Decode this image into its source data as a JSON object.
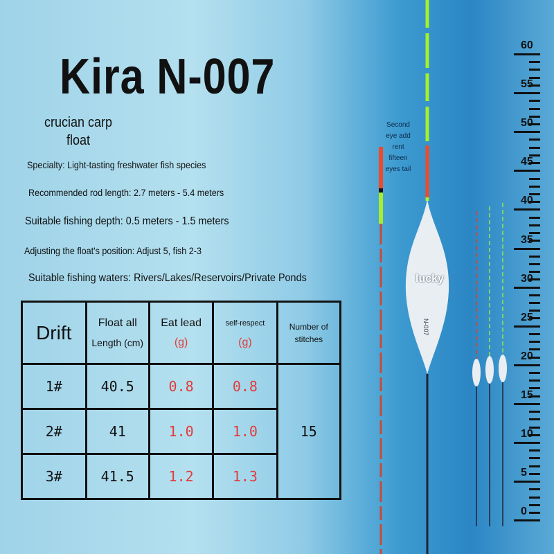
{
  "title": "Kira N-007",
  "subtitle": [
    "crucian carp",
    "float"
  ],
  "specs": [
    "Specialty: Light-tasting freshwater fish species",
    "Recommended rod length: 2.7 meters - 5.4 meters",
    "Suitable fishing depth: 0.5 meters - 1.5 meters",
    "Adjusting the float's position: Adjust 5, fish 2-3",
    "Suitable fishing waters: Rivers/Lakes/Reservoirs/Private Ponds"
  ],
  "table": {
    "headers": {
      "drift": "Drift",
      "length": [
        "Float all",
        "Length (cm)"
      ],
      "eat_lead": [
        "Eat lead",
        "(g)"
      ],
      "self_respect": [
        "self-respect",
        "(g)"
      ],
      "stitches": [
        "Number of",
        "stitches"
      ]
    },
    "rows": [
      {
        "drift": "1#",
        "length": "40.5",
        "eat_lead": "0.8",
        "self_respect": "0.8"
      },
      {
        "drift": "2#",
        "length": "41",
        "eat_lead": "1.0",
        "self_respect": "1.0"
      },
      {
        "drift": "3#",
        "length": "41.5",
        "eat_lead": "1.2",
        "self_respect": "1.3"
      }
    ],
    "stitches": "15"
  },
  "note": "Second eye add rent fifteen eyes tail",
  "float_label": "lucky",
  "float_body_text": "N-007",
  "ruler": [
    "60",
    "55",
    "50",
    "45",
    "40",
    "35",
    "30",
    "25",
    "20",
    "15",
    "10",
    "5",
    "0"
  ],
  "colors": {
    "red": "#e43a3a",
    "green": "#a6f02a",
    "tip_red": "#f04a28"
  }
}
